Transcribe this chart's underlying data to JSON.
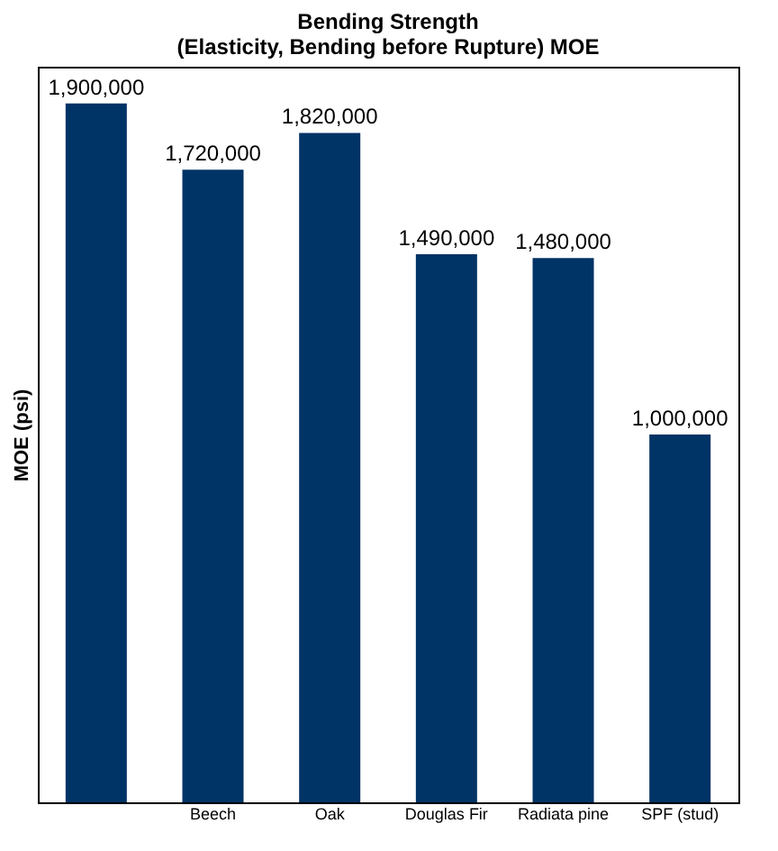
{
  "chart_data": {
    "type": "bar",
    "title": "Bending Strength\n(Elasticity, Bending before Rupture) MOE",
    "ylabel": "MOE (psi)",
    "categories": [
      null,
      "Beech",
      "Oak",
      "Douglas Fir",
      "Radiata pine",
      "SPF (stud)"
    ],
    "values": [
      1900000,
      1720000,
      1820000,
      1490000,
      1480000,
      1000000
    ],
    "value_labels": [
      "1,900,000",
      "1,720,000",
      "1,820,000",
      "1,490,000",
      "1,480,000",
      "1,000,000"
    ],
    "color": "#003366",
    "ylim": [
      0,
      2000000
    ],
    "tick_labels": "x",
    "grid": false
  }
}
